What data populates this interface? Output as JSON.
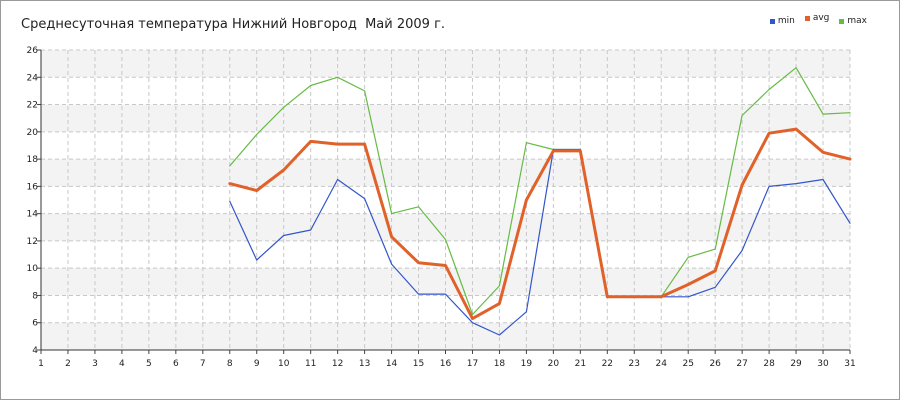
{
  "chart_data": {
    "type": "line",
    "title": "Среднесуточная температура Нижний Новгород  Май 2009 г.",
    "xlabel": "",
    "ylabel": "",
    "xlim": [
      1,
      31
    ],
    "ylim": [
      4,
      26
    ],
    "x_ticks": [
      1,
      2,
      3,
      4,
      5,
      6,
      7,
      8,
      9,
      10,
      11,
      12,
      13,
      14,
      15,
      16,
      17,
      18,
      19,
      20,
      21,
      22,
      23,
      24,
      25,
      26,
      27,
      28,
      29,
      30,
      31
    ],
    "y_ticks": [
      4,
      6,
      8,
      10,
      12,
      14,
      16,
      18,
      20,
      22,
      24,
      26
    ],
    "grid": true,
    "legend_position": "top-right",
    "x": [
      8,
      9,
      10,
      11,
      12,
      13,
      14,
      15,
      16,
      17,
      18,
      19,
      20,
      21,
      22,
      23,
      24,
      25,
      26,
      27,
      28,
      29,
      30,
      31
    ],
    "series": [
      {
        "name": "min",
        "color": "#3355cc",
        "values": [
          14.9,
          10.6,
          12.4,
          12.8,
          16.5,
          15.1,
          10.3,
          8.1,
          8.1,
          6.0,
          5.1,
          6.8,
          18.7,
          18.7,
          7.9,
          7.9,
          7.9,
          7.9,
          8.6,
          11.3,
          16.0,
          16.2,
          16.5,
          13.3
        ]
      },
      {
        "name": "avg",
        "color": "#e0622a",
        "values": [
          16.2,
          15.7,
          17.2,
          19.3,
          19.1,
          19.1,
          12.3,
          10.4,
          10.2,
          6.3,
          7.4,
          15.0,
          18.6,
          18.6,
          7.9,
          7.9,
          7.9,
          8.8,
          9.8,
          16.1,
          19.9,
          20.2,
          18.5,
          18.0
        ]
      },
      {
        "name": "max",
        "color": "#66bb44",
        "values": [
          17.5,
          19.8,
          21.8,
          23.4,
          24.0,
          23.0,
          14.0,
          14.5,
          12.1,
          6.6,
          8.7,
          19.2,
          18.7,
          18.7,
          7.9,
          7.9,
          7.9,
          10.8,
          11.4,
          21.2,
          23.1,
          24.7,
          21.3,
          21.4
        ]
      }
    ]
  }
}
